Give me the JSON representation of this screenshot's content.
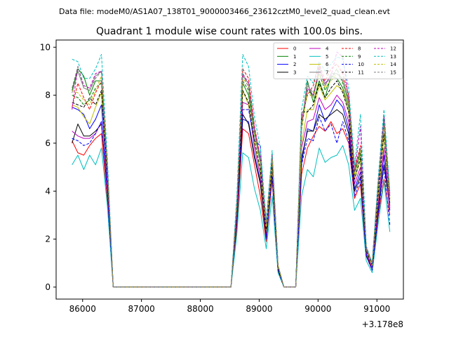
{
  "chart_data": {
    "type": "line",
    "suptitle": "Data file: modeM0/AS1A07_138T01_9000003466_23612cztM0_level2_quad_clean.evt",
    "title": "Quadrant 1 module wise count rates with 100.0s bins.",
    "xlabel": "",
    "ylabel": "",
    "x_offset_label": "+3.178e8",
    "xlim": [
      85550,
      91450
    ],
    "ylim": [
      -0.5,
      10.3
    ],
    "xticks": [
      86000,
      87000,
      88000,
      89000,
      90000,
      91000
    ],
    "yticks": [
      0,
      2,
      4,
      6,
      8,
      10
    ],
    "x": [
      85820,
      85920,
      86020,
      86120,
      86220,
      86320,
      86420,
      86520,
      86620,
      86720,
      86820,
      86920,
      87020,
      87120,
      87220,
      87320,
      87420,
      87520,
      87620,
      87720,
      87820,
      87920,
      88020,
      88120,
      88220,
      88320,
      88420,
      88520,
      88620,
      88720,
      88820,
      88920,
      89020,
      89120,
      89220,
      89320,
      89420,
      89520,
      89620,
      89720,
      89820,
      89920,
      90020,
      90120,
      90220,
      90320,
      90420,
      90520,
      90620,
      90720,
      90820,
      90920,
      91020,
      91120,
      91220
    ],
    "legend": {
      "location": "upper right",
      "ncols": 4
    },
    "series": [
      {
        "name": "0",
        "color": "#ff0000",
        "dash": "solid",
        "values": [
          6.1,
          5.6,
          5.5,
          5.9,
          6.2,
          6.4,
          3.6,
          0,
          0,
          0,
          0,
          0,
          0,
          0,
          0,
          0,
          0,
          0,
          0,
          0,
          0,
          0,
          0,
          0,
          0,
          0,
          0,
          0,
          2.5,
          6.6,
          6.4,
          5.1,
          3.8,
          1.9,
          4.5,
          0.7,
          0,
          0,
          0,
          4.7,
          5.8,
          6.3,
          6.7,
          6.5,
          6.9,
          6.4,
          6.6,
          6.0,
          3.7,
          4.3,
          1.3,
          0.7,
          2.9,
          4.5,
          3.0
        ]
      },
      {
        "name": "1",
        "color": "#008000",
        "dash": "solid",
        "values": [
          8.2,
          9.1,
          8.8,
          8.0,
          8.6,
          8.6,
          5.0,
          0,
          0,
          0,
          0,
          0,
          0,
          0,
          0,
          0,
          0,
          0,
          0,
          0,
          0,
          0,
          0,
          0,
          0,
          0,
          0,
          0,
          3.4,
          8.5,
          8.0,
          6.4,
          5.2,
          2.6,
          5.4,
          0.9,
          0,
          0,
          0,
          6.7,
          8.6,
          7.7,
          8.6,
          7.9,
          8.8,
          8.7,
          8.3,
          7.5,
          4.7,
          5.6,
          1.6,
          1.0,
          4.1,
          7.1,
          3.5
        ]
      },
      {
        "name": "2",
        "color": "#0000ff",
        "dash": "solid",
        "values": [
          7.5,
          7.4,
          7.2,
          6.6,
          7.0,
          7.6,
          4.4,
          0,
          0,
          0,
          0,
          0,
          0,
          0,
          0,
          0,
          0,
          0,
          0,
          0,
          0,
          0,
          0,
          0,
          0,
          0,
          0,
          0,
          3.0,
          7.0,
          6.9,
          5.5,
          4.4,
          2.1,
          4.8,
          0.8,
          0,
          0,
          0,
          5.2,
          6.6,
          6.5,
          7.6,
          6.9,
          7.3,
          7.8,
          7.5,
          6.6,
          4.1,
          4.8,
          1.4,
          0.8,
          3.3,
          5.5,
          3.2
        ]
      },
      {
        "name": "3",
        "color": "#000000",
        "dash": "solid",
        "values": [
          6.0,
          6.8,
          6.3,
          6.3,
          6.5,
          6.8,
          4.0,
          0,
          0,
          0,
          0,
          0,
          0,
          0,
          0,
          0,
          0,
          0,
          0,
          0,
          0,
          0,
          0,
          0,
          0,
          0,
          0,
          0,
          2.8,
          7.2,
          6.8,
          5.4,
          4.3,
          2.0,
          4.7,
          0.7,
          0,
          0,
          0,
          5.4,
          6.5,
          6.5,
          7.2,
          7.0,
          7.2,
          7.4,
          7.2,
          6.4,
          4.0,
          4.6,
          1.3,
          0.8,
          3.1,
          5.1,
          3.4
        ]
      },
      {
        "name": "4",
        "color": "#bf00bf",
        "dash": "solid",
        "values": [
          6.5,
          6.3,
          6.2,
          6.2,
          6.4,
          6.9,
          4.1,
          0,
          0,
          0,
          0,
          0,
          0,
          0,
          0,
          0,
          0,
          0,
          0,
          0,
          0,
          0,
          0,
          0,
          0,
          0,
          0,
          0,
          3.0,
          7.7,
          7.6,
          5.8,
          4.6,
          2.2,
          4.9,
          0.8,
          0,
          0,
          0,
          5.8,
          6.9,
          7.0,
          7.9,
          7.4,
          7.6,
          8.0,
          7.7,
          6.9,
          4.3,
          5.0,
          1.4,
          0.8,
          3.4,
          5.8,
          3.3
        ]
      },
      {
        "name": "5",
        "color": "#00bfbf",
        "dash": "solid",
        "values": [
          5.1,
          5.5,
          4.9,
          5.5,
          5.1,
          5.8,
          3.4,
          0,
          0,
          0,
          0,
          0,
          0,
          0,
          0,
          0,
          0,
          0,
          0,
          0,
          0,
          0,
          0,
          0,
          0,
          0,
          0,
          0,
          2.2,
          5.6,
          5.4,
          4.1,
          3.2,
          1.6,
          3.8,
          0.6,
          0,
          0,
          0,
          3.8,
          4.9,
          4.6,
          5.8,
          5.2,
          5.4,
          5.5,
          5.9,
          5.1,
          3.2,
          3.7,
          1.1,
          0.6,
          2.6,
          4.4,
          2.3
        ]
      },
      {
        "name": "6",
        "color": "#bfbf00",
        "dash": "solid",
        "values": [
          7.6,
          7.5,
          7.1,
          6.8,
          7.5,
          8.1,
          4.7,
          0,
          0,
          0,
          0,
          0,
          0,
          0,
          0,
          0,
          0,
          0,
          0,
          0,
          0,
          0,
          0,
          0,
          0,
          0,
          0,
          0,
          3.2,
          8.2,
          7.6,
          6.0,
          4.8,
          2.3,
          5.0,
          0.8,
          0,
          0,
          0,
          6.0,
          7.4,
          7.4,
          8.4,
          7.8,
          8.1,
          8.4,
          8.2,
          7.3,
          4.5,
          5.3,
          1.5,
          0.9,
          3.7,
          6.3,
          3.6
        ]
      },
      {
        "name": "7",
        "color": "#808080",
        "dash": "solid",
        "values": [
          8.1,
          9.0,
          8.3,
          8.2,
          8.8,
          9.0,
          5.1,
          0,
          0,
          0,
          0,
          0,
          0,
          0,
          0,
          0,
          0,
          0,
          0,
          0,
          0,
          0,
          0,
          0,
          0,
          0,
          0,
          0,
          3.5,
          8.8,
          8.5,
          6.6,
          5.3,
          2.6,
          5.5,
          0.9,
          0,
          0,
          0,
          6.8,
          8.5,
          7.9,
          9.2,
          8.4,
          8.9,
          8.9,
          8.7,
          7.8,
          4.8,
          5.8,
          1.6,
          1.0,
          4.2,
          6.9,
          3.8
        ]
      },
      {
        "name": "8",
        "color": "#ff0000",
        "dash": "dashed",
        "values": [
          7.5,
          8.5,
          7.9,
          7.4,
          8.1,
          8.6,
          4.8,
          0,
          0,
          0,
          0,
          0,
          0,
          0,
          0,
          0,
          0,
          0,
          0,
          0,
          0,
          0,
          0,
          0,
          0,
          0,
          0,
          0,
          3.4,
          9.1,
          8.7,
          6.7,
          5.4,
          2.6,
          5.6,
          0.9,
          0,
          0,
          0,
          7.0,
          8.0,
          8.4,
          9.3,
          8.6,
          9.1,
          9.3,
          8.9,
          8.0,
          4.9,
          5.9,
          1.7,
          1.0,
          4.3,
          7.0,
          3.9
        ]
      },
      {
        "name": "9",
        "color": "#008000",
        "dash": "dashed",
        "values": [
          8.0,
          7.9,
          7.6,
          7.8,
          8.3,
          8.5,
          4.9,
          0,
          0,
          0,
          0,
          0,
          0,
          0,
          0,
          0,
          0,
          0,
          0,
          0,
          0,
          0,
          0,
          0,
          0,
          0,
          0,
          0,
          3.3,
          8.6,
          8.2,
          6.4,
          5.2,
          2.5,
          5.3,
          0.9,
          0,
          0,
          0,
          6.6,
          8.2,
          8.0,
          8.9,
          8.2,
          8.7,
          9.1,
          8.5,
          7.7,
          4.7,
          5.7,
          1.6,
          0.9,
          4.0,
          6.8,
          3.7
        ]
      },
      {
        "name": "10",
        "color": "#0000ff",
        "dash": "dashed",
        "values": [
          6.2,
          6.1,
          5.9,
          6.0,
          6.4,
          6.9,
          4.0,
          0,
          0,
          0,
          0,
          0,
          0,
          0,
          0,
          0,
          0,
          0,
          0,
          0,
          0,
          0,
          0,
          0,
          0,
          0,
          0,
          0,
          2.9,
          7.4,
          7.4,
          6.1,
          5.9,
          2.0,
          4.6,
          0.7,
          0,
          0,
          0,
          5.1,
          6.2,
          6.1,
          7.1,
          6.5,
          6.8,
          6.0,
          6.9,
          6.1,
          3.8,
          4.5,
          1.3,
          0.7,
          3.0,
          5.0,
          2.6
        ]
      },
      {
        "name": "11",
        "color": "#000000",
        "dash": "dashed",
        "values": [
          7.7,
          7.6,
          7.5,
          7.9,
          7.6,
          8.2,
          4.7,
          0,
          0,
          0,
          0,
          0,
          0,
          0,
          0,
          0,
          0,
          0,
          0,
          0,
          0,
          0,
          0,
          0,
          0,
          0,
          0,
          0,
          3.2,
          8.2,
          7.7,
          6.1,
          4.9,
          2.4,
          5.1,
          0.8,
          0,
          0,
          0,
          7.3,
          7.3,
          7.6,
          8.5,
          7.9,
          8.3,
          8.6,
          8.1,
          7.3,
          4.5,
          5.4,
          1.5,
          0.9,
          3.8,
          6.4,
          3.6
        ]
      },
      {
        "name": "12",
        "color": "#bf00bf",
        "dash": "dashed",
        "values": [
          7.4,
          9.2,
          8.4,
          8.3,
          8.9,
          9.0,
          5.1,
          0,
          0,
          0,
          0,
          0,
          0,
          0,
          0,
          0,
          0,
          0,
          0,
          0,
          0,
          0,
          0,
          0,
          0,
          0,
          0,
          0,
          3.5,
          8.9,
          8.5,
          6.6,
          5.4,
          2.6,
          5.5,
          0.9,
          0,
          0,
          0,
          6.9,
          8.3,
          8.0,
          9.1,
          8.5,
          8.8,
          9.8,
          9.6,
          7.8,
          4.8,
          6.7,
          1.6,
          1.0,
          4.3,
          7.1,
          3.8
        ]
      },
      {
        "name": "13",
        "color": "#00bfbf",
        "dash": "dashed",
        "values": [
          9.5,
          9.4,
          8.7,
          8.7,
          9.1,
          9.7,
          5.4,
          0,
          0,
          0,
          0,
          0,
          0,
          0,
          0,
          0,
          0,
          0,
          0,
          0,
          0,
          0,
          0,
          0,
          0,
          0,
          0,
          0,
          3.8,
          9.7,
          9.2,
          7.1,
          5.8,
          2.8,
          5.7,
          0.9,
          0,
          0,
          0,
          7.4,
          8.8,
          8.5,
          9.4,
          9.0,
          9.3,
          9.6,
          9.5,
          8.3,
          5.1,
          7.2,
          1.7,
          1.0,
          4.5,
          7.4,
          4.0
        ]
      },
      {
        "name": "14",
        "color": "#bfbf00",
        "dash": "dashed",
        "values": [
          8.2,
          8.1,
          7.8,
          7.6,
          8.2,
          8.8,
          4.9,
          0,
          0,
          0,
          0,
          0,
          0,
          0,
          0,
          0,
          0,
          0,
          0,
          0,
          0,
          0,
          0,
          0,
          0,
          0,
          0,
          0,
          3.3,
          8.7,
          8.4,
          6.4,
          5.3,
          2.5,
          5.4,
          0.9,
          0,
          0,
          0,
          6.7,
          8.1,
          7.9,
          8.9,
          8.3,
          8.6,
          8.9,
          8.6,
          7.6,
          4.7,
          5.7,
          1.6,
          0.9,
          4.1,
          6.7,
          3.7
        ]
      },
      {
        "name": "15",
        "color": "#808080",
        "dash": "dashed",
        "values": [
          8.3,
          9.2,
          8.3,
          8.2,
          8.7,
          9.0,
          5.0,
          0,
          0,
          0,
          0,
          0,
          0,
          0,
          0,
          0,
          0,
          0,
          0,
          0,
          0,
          0,
          0,
          0,
          0,
          0,
          0,
          0,
          3.4,
          8.9,
          8.3,
          6.5,
          5.3,
          2.6,
          5.4,
          0.9,
          0,
          0,
          0,
          6.8,
          8.4,
          8.1,
          9.0,
          8.4,
          8.8,
          8.9,
          8.6,
          7.7,
          4.8,
          5.8,
          1.6,
          1.0,
          4.2,
          6.9,
          3.8
        ]
      }
    ]
  }
}
